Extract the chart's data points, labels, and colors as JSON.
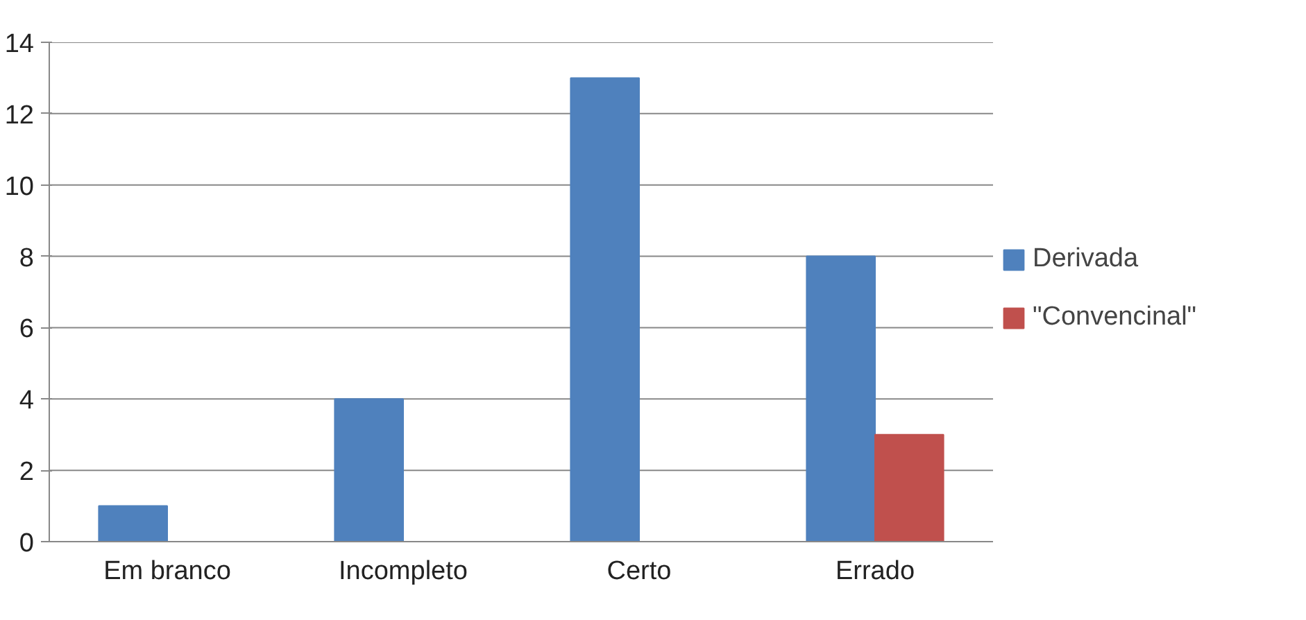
{
  "chart_data": {
    "type": "bar",
    "categories": [
      "Em branco",
      "Incompleto",
      "Certo",
      "Errado"
    ],
    "series": [
      {
        "name": "Derivada",
        "color": "#4f81bd",
        "values": [
          1,
          4,
          13,
          8
        ]
      },
      {
        "name": "\"Convencinal\"",
        "color": "#c0504d",
        "values": [
          0,
          0,
          0,
          3
        ]
      }
    ],
    "ylim": [
      0,
      14
    ],
    "yticks": [
      0,
      2,
      4,
      6,
      8,
      10,
      12,
      14
    ],
    "grid": "y",
    "legend": "right"
  }
}
